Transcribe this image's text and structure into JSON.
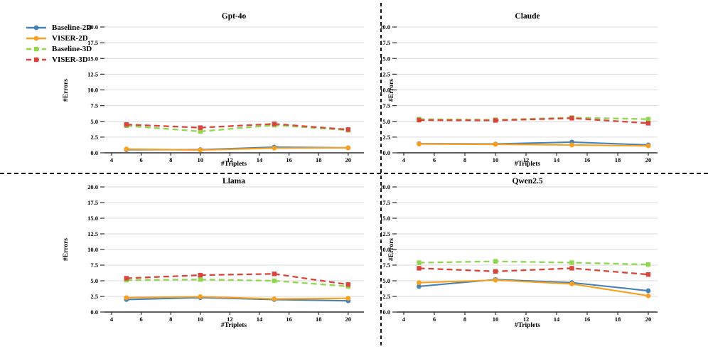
{
  "legend": {
    "items": [
      {
        "label": "Baseline-2D",
        "color": "#4682b4",
        "line": "solid",
        "marker": "circle"
      },
      {
        "label": "VISER-2D",
        "color": "#f9a11f",
        "line": "solid",
        "marker": "circle"
      },
      {
        "label": "Baseline-3D",
        "color": "#90d74f",
        "line": "dashed",
        "marker": "square"
      },
      {
        "label": "VISER-3D",
        "color": "#d9453c",
        "line": "dashed",
        "marker": "square"
      }
    ]
  },
  "chart_data": [
    {
      "type": "line",
      "title": "Gpt-4o",
      "xlabel": "#Triplets",
      "ylabel": "#Errors",
      "x": [
        5,
        10,
        15,
        20
      ],
      "xticks": [
        4,
        6,
        8,
        10,
        12,
        14,
        16,
        18,
        20
      ],
      "yticks": [
        0.0,
        2.5,
        5.0,
        7.5,
        10.0,
        12.5,
        15.0,
        17.5,
        20.0
      ],
      "ylim": [
        0,
        20
      ],
      "grid": true,
      "series": [
        {
          "name": "Baseline-2D",
          "values": [
            0.5,
            0.5,
            0.9,
            0.8
          ]
        },
        {
          "name": "VISER-2D",
          "values": [
            0.6,
            0.45,
            0.75,
            0.8
          ]
        },
        {
          "name": "Baseline-3D",
          "values": [
            4.3,
            3.4,
            4.4,
            3.6
          ]
        },
        {
          "name": "VISER-3D",
          "values": [
            4.5,
            4.0,
            4.6,
            3.7
          ]
        }
      ]
    },
    {
      "type": "line",
      "title": "Claude",
      "xlabel": "#Triplets",
      "ylabel": "#Errors",
      "x": [
        5,
        10,
        15,
        20
      ],
      "xticks": [
        4,
        6,
        8,
        10,
        12,
        14,
        16,
        18,
        20
      ],
      "yticks": [
        0.0,
        2.5,
        5.0,
        7.5,
        10.0,
        12.5,
        15.0,
        17.5,
        20.0
      ],
      "ylim": [
        0,
        20
      ],
      "grid": true,
      "series": [
        {
          "name": "Baseline-2D",
          "values": [
            1.45,
            1.4,
            1.7,
            1.25
          ]
        },
        {
          "name": "VISER-2D",
          "values": [
            1.4,
            1.35,
            1.25,
            1.1
          ]
        },
        {
          "name": "Baseline-3D",
          "values": [
            5.35,
            5.25,
            5.6,
            5.35
          ]
        },
        {
          "name": "VISER-3D",
          "values": [
            5.2,
            5.15,
            5.5,
            4.7
          ]
        }
      ]
    },
    {
      "type": "line",
      "title": "Llama",
      "xlabel": "#Triplets",
      "ylabel": "#Errors",
      "x": [
        5,
        10,
        15,
        20
      ],
      "xticks": [
        4,
        6,
        8,
        10,
        12,
        14,
        16,
        18,
        20
      ],
      "yticks": [
        0.0,
        2.5,
        5.0,
        7.5,
        10.0,
        12.5,
        15.0,
        17.5,
        20.0
      ],
      "ylim": [
        0,
        20
      ],
      "grid": true,
      "series": [
        {
          "name": "Baseline-2D",
          "values": [
            2.0,
            2.3,
            2.0,
            1.8
          ]
        },
        {
          "name": "VISER-2D",
          "values": [
            2.3,
            2.45,
            2.1,
            2.2
          ]
        },
        {
          "name": "Baseline-3D",
          "values": [
            5.1,
            5.2,
            5.0,
            4.1
          ]
        },
        {
          "name": "VISER-3D",
          "values": [
            5.4,
            5.9,
            6.1,
            4.4
          ]
        }
      ]
    },
    {
      "type": "line",
      "title": "Qwen2.5",
      "xlabel": "#Triplets",
      "ylabel": "#Errors",
      "x": [
        5,
        10,
        15,
        20
      ],
      "xticks": [
        4,
        6,
        8,
        10,
        12,
        14,
        16,
        18,
        20
      ],
      "yticks": [
        0.0,
        2.5,
        5.0,
        7.5,
        10.0,
        12.5,
        15.0,
        17.5,
        20.0
      ],
      "ylim": [
        0,
        20
      ],
      "grid": true,
      "series": [
        {
          "name": "Baseline-2D",
          "values": [
            4.1,
            5.2,
            4.7,
            3.4
          ]
        },
        {
          "name": "VISER-2D",
          "values": [
            4.7,
            5.1,
            4.5,
            2.6
          ]
        },
        {
          "name": "Baseline-3D",
          "values": [
            7.9,
            8.1,
            7.9,
            7.6
          ]
        },
        {
          "name": "VISER-3D",
          "values": [
            7.0,
            6.5,
            7.0,
            6.0
          ]
        }
      ]
    }
  ]
}
